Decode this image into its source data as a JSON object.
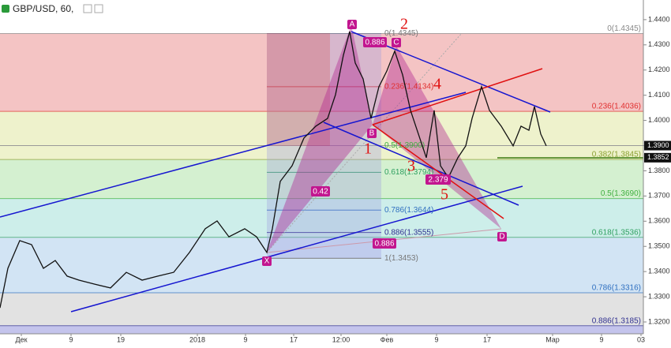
{
  "chart_data": {
    "type": "line",
    "title": "GBP/USD, 60,",
    "x": [
      0,
      2,
      5,
      8,
      11,
      14,
      17,
      20,
      24,
      28,
      32,
      36,
      40,
      44,
      48,
      52,
      55,
      58,
      62,
      65,
      67.6,
      69,
      71,
      74,
      77,
      80,
      83,
      85,
      87,
      88.6,
      90,
      92,
      94,
      96,
      98,
      100,
      102,
      104,
      106,
      108,
      110,
      111.6,
      113.6,
      116,
      118,
      119.6,
      122,
      124,
      127,
      130,
      132,
      134,
      135.4,
      137,
      138.4
    ],
    "series": [
      {
        "color": "#111111",
        "values": [
          1.3256,
          1.3413,
          1.3523,
          1.3507,
          1.3413,
          1.3444,
          1.3382,
          1.3366,
          1.335,
          1.3335,
          1.3397,
          1.3366,
          1.3382,
          1.3397,
          1.3476,
          1.357,
          1.3601,
          1.3538,
          1.357,
          1.3538,
          1.3476,
          1.357,
          1.3758,
          1.382,
          1.393,
          1.3977,
          1.4008,
          1.4102,
          1.4259,
          1.4353,
          1.4228,
          1.4165,
          1.4008,
          1.4134,
          1.4196,
          1.4275,
          1.4181,
          1.404,
          1.3946,
          1.3852,
          1.404,
          1.382,
          1.3773,
          1.3852,
          1.3899,
          1.4008,
          1.4134,
          1.404,
          1.3977,
          1.3899,
          1.3977,
          1.3961,
          1.4055,
          1.3946,
          1.3899
        ]
      }
    ],
    "xlim": [
      0,
      163
    ],
    "xticks": [
      {
        "value": 5.4,
        "label": "Дек"
      },
      {
        "value": 18,
        "label": "9"
      },
      {
        "value": 30.6,
        "label": "19"
      },
      {
        "value": 50,
        "label": "2018"
      },
      {
        "value": 62.2,
        "label": "9"
      },
      {
        "value": 74.4,
        "label": "17"
      },
      {
        "value": 86.4,
        "label": "12:00"
      },
      {
        "value": 98,
        "label": "Фев"
      },
      {
        "value": 110.6,
        "label": "9"
      },
      {
        "value": 123.4,
        "label": "17"
      },
      {
        "value": 140,
        "label": "Мар"
      },
      {
        "value": 152.4,
        "label": "9"
      },
      {
        "value": 162.4,
        "label": "03"
      }
    ],
    "ylim": [
      1.3153,
      1.4478
    ],
    "yticks": [
      {
        "value": 1.44,
        "label": "1.4400"
      },
      {
        "value": 1.43,
        "label": "1.4300"
      },
      {
        "value": 1.42,
        "label": "1.4200"
      },
      {
        "value": 1.41,
        "label": "1.4100"
      },
      {
        "value": 1.4,
        "label": "1.4000"
      },
      {
        "value": 1.39,
        "label": "1.3900"
      },
      {
        "value": 1.38,
        "label": "1.3800"
      },
      {
        "value": 1.37,
        "label": "1.3700"
      },
      {
        "value": 1.36,
        "label": "1.3600"
      },
      {
        "value": 1.35,
        "label": "1.3500"
      },
      {
        "value": 1.34,
        "label": "1.3400"
      },
      {
        "value": 1.33,
        "label": "1.3300"
      },
      {
        "value": 1.32,
        "label": "1.3200"
      }
    ],
    "price_badges": [
      {
        "value": 1.39,
        "label": "1.3900"
      },
      {
        "value": 1.3852,
        "label": "1.3852"
      }
    ],
    "fib_right": [
      {
        "value": 1.4345,
        "label": "0(1.4345)",
        "color": "#888888"
      },
      {
        "value": 1.4036,
        "label": "0.236(1.4036)",
        "color": "#e03030"
      },
      {
        "value": 1.3845,
        "label": "0.382(1.3845)",
        "color": "#8aa030"
      },
      {
        "value": 1.369,
        "label": "0.5(1.3690)",
        "color": "#40b040"
      },
      {
        "value": 1.3536,
        "label": "0.618(1.3536)",
        "color": "#30a060"
      },
      {
        "value": 1.3316,
        "label": "0.786(1.3316)",
        "color": "#3070c0"
      },
      {
        "value": 1.3185,
        "label": "0.886(1.3185)",
        "color": "#303090"
      }
    ],
    "fib_mid": [
      {
        "value": 1.4345,
        "label": "0(1.4345)",
        "color": "#777777"
      },
      {
        "value": 1.4134,
        "label": "0.236(1.4134)",
        "color": "#e03030"
      },
      {
        "value": 1.39,
        "label": "0.5(1.3900)",
        "color": "#40b040"
      },
      {
        "value": 1.3794,
        "label": "0.618(1.3794)",
        "color": "#30a060"
      },
      {
        "value": 1.3644,
        "label": "0.786(1.3644)",
        "color": "#3070c0"
      },
      {
        "value": 1.3555,
        "label": "0.886(1.3555)",
        "color": "#303090"
      },
      {
        "value": 1.3453,
        "label": "1(1.3453)",
        "color": "#777777"
      }
    ]
  },
  "pattern": {
    "points": [
      "X",
      "A",
      "B",
      "C",
      "D"
    ],
    "ratios": [
      "0.42",
      "0.886",
      "0.886",
      "2.379"
    ]
  },
  "waves": [
    "1",
    "2",
    "3",
    "4",
    "5"
  ]
}
